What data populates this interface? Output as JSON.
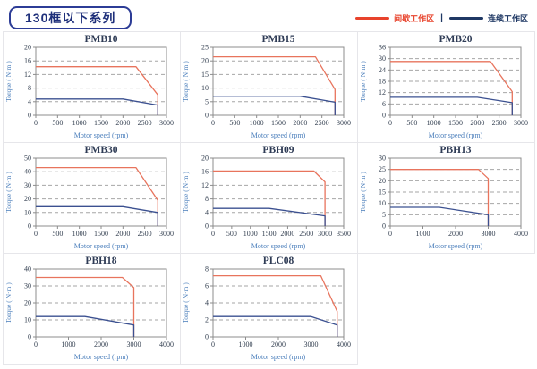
{
  "header": {
    "series_title": "130框以下系列",
    "legend": [
      {
        "label": "间歇工作区",
        "color": "#e8432c"
      },
      {
        "label": "连续工作区",
        "color": "#1f3864"
      }
    ],
    "legend_separator": "|"
  },
  "chart_style": {
    "red_line": "#e8745d",
    "blue_line": "#3b5090",
    "grid_color": "#a6a6a6",
    "axis_color": "#8c8c8c",
    "tick_color": "#333f50",
    "title_color": "#2e3b55",
    "label_color": "#4a7ebb"
  },
  "chart_data": [
    {
      "type": "line",
      "title": "PMB10",
      "xlabel": "Motor speed (rpm)",
      "ylabel": "Torque ( N·m )",
      "xlim": [
        0,
        3000
      ],
      "xticks": [
        0,
        500,
        1000,
        1500,
        2000,
        2500,
        3000
      ],
      "ylim": [
        0,
        20
      ],
      "yticks": [
        0,
        4,
        8,
        12,
        16,
        20
      ],
      "grid": "horizontal-dashed",
      "legend_position": "none",
      "series": [
        {
          "name": "间歇工作区",
          "color": "red",
          "points": [
            [
              0,
              14.3
            ],
            [
              2300,
              14.3
            ],
            [
              2800,
              6
            ],
            [
              2800,
              0
            ]
          ]
        },
        {
          "name": "连续工作区",
          "color": "blue",
          "points": [
            [
              0,
              4.8
            ],
            [
              2000,
              4.8
            ],
            [
              2800,
              3
            ],
            [
              2800,
              0
            ]
          ]
        }
      ]
    },
    {
      "type": "line",
      "title": "PMB15",
      "xlabel": "Motor speed (rpm)",
      "ylabel": "Torque ( N·m )",
      "xlim": [
        0,
        3000
      ],
      "xticks": [
        0,
        500,
        1000,
        1500,
        2000,
        2500,
        3000
      ],
      "ylim": [
        0,
        25
      ],
      "yticks": [
        0,
        5,
        10,
        15,
        20,
        25
      ],
      "grid": "horizontal-dashed",
      "legend_position": "none",
      "series": [
        {
          "name": "间歇工作区",
          "color": "red",
          "points": [
            [
              0,
              21.5
            ],
            [
              2350,
              21.5
            ],
            [
              2800,
              9.5
            ],
            [
              2800,
              0
            ]
          ]
        },
        {
          "name": "连续工作区",
          "color": "blue",
          "points": [
            [
              0,
              7
            ],
            [
              2000,
              7
            ],
            [
              2800,
              4.8
            ],
            [
              2800,
              0
            ]
          ]
        }
      ]
    },
    {
      "type": "line",
      "title": "PMB20",
      "xlabel": "Motor speed (rpm)",
      "ylabel": "Torque ( N·m )",
      "xlim": [
        0,
        3000
      ],
      "xticks": [
        0,
        500,
        1000,
        1500,
        2000,
        2500,
        3000
      ],
      "ylim": [
        0,
        36
      ],
      "yticks": [
        0,
        6,
        12,
        18,
        24,
        30,
        36
      ],
      "grid": "horizontal-dashed",
      "legend_position": "none",
      "series": [
        {
          "name": "间歇工作区",
          "color": "red",
          "points": [
            [
              0,
              28.5
            ],
            [
              2300,
              28.5
            ],
            [
              2800,
              12.5
            ],
            [
              2800,
              0
            ]
          ]
        },
        {
          "name": "连续工作区",
          "color": "blue",
          "points": [
            [
              0,
              9.5
            ],
            [
              2000,
              9.5
            ],
            [
              2800,
              6.7
            ],
            [
              2800,
              0
            ]
          ]
        }
      ]
    },
    {
      "type": "line",
      "title": "PMB30",
      "xlabel": "Motor speed (rpm)",
      "ylabel": "Torque ( N·m )",
      "xlim": [
        0,
        3000
      ],
      "xticks": [
        0,
        500,
        1000,
        1500,
        2000,
        2500,
        3000
      ],
      "ylim": [
        0,
        50
      ],
      "yticks": [
        0,
        10,
        20,
        30,
        40,
        50
      ],
      "grid": "horizontal-dashed",
      "legend_position": "none",
      "series": [
        {
          "name": "间歇工作区",
          "color": "red",
          "points": [
            [
              0,
              43
            ],
            [
              2300,
              43
            ],
            [
              2800,
              19
            ],
            [
              2800,
              0
            ]
          ]
        },
        {
          "name": "连续工作区",
          "color": "blue",
          "points": [
            [
              0,
              14.3
            ],
            [
              2000,
              14.3
            ],
            [
              2800,
              10
            ],
            [
              2800,
              0
            ]
          ]
        }
      ]
    },
    {
      "type": "line",
      "title": "PBH09",
      "xlabel": "Motor speed (rpm)",
      "ylabel": "Torque ( N·m )",
      "xlim": [
        0,
        3500
      ],
      "xticks": [
        0,
        500,
        1000,
        1500,
        2000,
        2500,
        3000,
        3500
      ],
      "ylim": [
        0,
        20
      ],
      "yticks": [
        0,
        4,
        8,
        12,
        16,
        20
      ],
      "grid": "horizontal-dashed",
      "legend_position": "none",
      "series": [
        {
          "name": "间歇工作区",
          "color": "red",
          "points": [
            [
              0,
              16.2
            ],
            [
              2700,
              16.2
            ],
            [
              3000,
              13
            ],
            [
              3000,
              0
            ]
          ]
        },
        {
          "name": "连续工作区",
          "color": "blue",
          "points": [
            [
              0,
              5.2
            ],
            [
              1500,
              5.2
            ],
            [
              3000,
              3
            ],
            [
              3000,
              0
            ]
          ]
        }
      ]
    },
    {
      "type": "line",
      "title": "PBH13",
      "xlabel": "Motor speed (rpm)",
      "ylabel": "Torque ( N·m )",
      "xlim": [
        0,
        4000
      ],
      "xticks": [
        0,
        1000,
        2000,
        3000,
        4000
      ],
      "ylim": [
        0,
        30
      ],
      "yticks": [
        0,
        5,
        10,
        15,
        20,
        25,
        30
      ],
      "grid": "horizontal-dashed",
      "legend_position": "none",
      "series": [
        {
          "name": "间歇工作区",
          "color": "red",
          "points": [
            [
              0,
              25
            ],
            [
              2700,
              25
            ],
            [
              3000,
              21
            ],
            [
              3000,
              0
            ]
          ]
        },
        {
          "name": "连续工作区",
          "color": "blue",
          "points": [
            [
              0,
              8.3
            ],
            [
              1500,
              8.3
            ],
            [
              3000,
              5
            ],
            [
              3000,
              0
            ]
          ]
        }
      ]
    },
    {
      "type": "line",
      "title": "PBH18",
      "xlabel": "Motor speed (rpm)",
      "ylabel": "Torque ( N·m )",
      "xlim": [
        0,
        4000
      ],
      "xticks": [
        0,
        1000,
        2000,
        3000,
        4000
      ],
      "ylim": [
        0,
        40
      ],
      "yticks": [
        0,
        10,
        20,
        30,
        40
      ],
      "grid": "horizontal-dashed",
      "legend_position": "none",
      "series": [
        {
          "name": "间歇工作区",
          "color": "red",
          "points": [
            [
              0,
              35
            ],
            [
              2650,
              35
            ],
            [
              3000,
              29
            ],
            [
              3000,
              0
            ]
          ]
        },
        {
          "name": "连续工作区",
          "color": "blue",
          "points": [
            [
              0,
              12
            ],
            [
              1500,
              12
            ],
            [
              3000,
              7
            ],
            [
              3000,
              0
            ]
          ]
        }
      ]
    },
    {
      "type": "line",
      "title": "PLC08",
      "xlabel": "Motor speed (rpm)",
      "ylabel": "Torque ( N·m )",
      "xlim": [
        0,
        4000
      ],
      "xticks": [
        0,
        1000,
        2000,
        3000,
        4000
      ],
      "ylim": [
        0,
        8
      ],
      "yticks": [
        0,
        2,
        4,
        6,
        8
      ],
      "grid": "horizontal-dashed",
      "legend_position": "none",
      "series": [
        {
          "name": "间歇工作区",
          "color": "red",
          "points": [
            [
              0,
              7.2
            ],
            [
              3300,
              7.2
            ],
            [
              3800,
              3
            ],
            [
              3800,
              0
            ]
          ]
        },
        {
          "name": "连续工作区",
          "color": "blue",
          "points": [
            [
              0,
              2.4
            ],
            [
              3000,
              2.4
            ],
            [
              3800,
              1.4
            ],
            [
              3800,
              0
            ]
          ]
        }
      ]
    }
  ]
}
